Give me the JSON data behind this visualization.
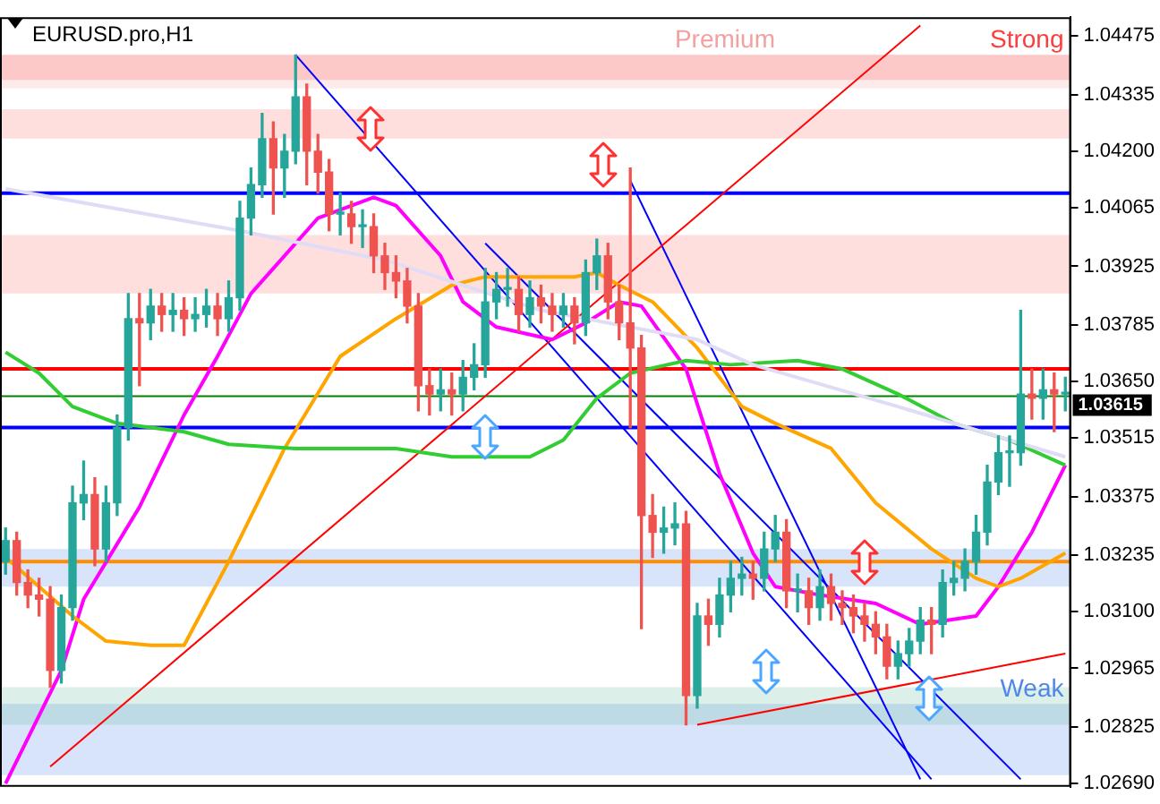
{
  "chart_data": {
    "type": "candlestick",
    "title": "EURUSD.pro,H1",
    "categories": [
      null,
      null,
      null,
      null,
      null,
      null,
      null,
      null,
      null,
      null,
      null,
      null,
      null,
      null,
      null,
      null,
      null,
      null,
      null,
      null,
      null,
      null,
      null,
      null,
      null,
      null,
      null,
      null,
      null,
      null,
      null,
      null,
      null,
      null,
      null,
      null,
      null,
      null,
      null,
      null,
      null,
      null,
      null,
      null,
      null,
      null,
      null,
      null,
      null,
      null,
      null,
      null,
      null,
      null,
      null,
      null,
      null,
      null,
      null,
      null,
      null,
      null,
      null,
      null,
      null,
      null,
      null,
      null,
      null,
      null,
      null,
      null,
      null,
      null,
      null,
      null,
      null,
      null,
      null,
      null,
      null,
      null,
      null,
      null,
      null,
      null,
      null,
      null,
      null,
      null,
      null,
      null,
      null,
      null,
      null,
      null
    ],
    "ohlc": [
      [
        1.0322,
        1.033,
        1.0319,
        1.0327
      ],
      [
        1.0327,
        1.0329,
        1.0314,
        1.0317
      ],
      [
        1.0317,
        1.032,
        1.0311,
        1.0314
      ],
      [
        1.0314,
        1.0318,
        1.0309,
        1.0313
      ],
      [
        1.0313,
        1.0316,
        1.0292,
        1.0296
      ],
      [
        1.0296,
        1.0314,
        1.0293,
        1.0311
      ],
      [
        1.0311,
        1.034,
        1.0308,
        1.0336
      ],
      [
        1.0336,
        1.0346,
        1.0332,
        1.0338
      ],
      [
        1.0338,
        1.0342,
        1.0321,
        1.0325
      ],
      [
        1.0325,
        1.034,
        1.0322,
        1.0336
      ],
      [
        1.0336,
        1.0357,
        1.0333,
        1.0354
      ],
      [
        1.0354,
        1.0386,
        1.0351,
        1.038
      ],
      [
        1.038,
        1.0386,
        1.0364,
        1.0379
      ],
      [
        1.0379,
        1.0387,
        1.0375,
        1.0383
      ],
      [
        1.0383,
        1.0386,
        1.0377,
        1.0381
      ],
      [
        1.0381,
        1.0386,
        1.0377,
        1.0382
      ],
      [
        1.0382,
        1.0385,
        1.0376,
        1.038
      ],
      [
        1.038,
        1.0385,
        1.0377,
        1.0381
      ],
      [
        1.0381,
        1.0387,
        1.0378,
        1.0383
      ],
      [
        1.0383,
        1.0386,
        1.0376,
        1.038
      ],
      [
        1.038,
        1.0389,
        1.0377,
        1.0385
      ],
      [
        1.0385,
        1.0408,
        1.0382,
        1.0404
      ],
      [
        1.0404,
        1.0416,
        1.04,
        1.0412
      ],
      [
        1.0412,
        1.0429,
        1.0409,
        1.0423
      ],
      [
        1.0423,
        1.0427,
        1.0405,
        1.0416
      ],
      [
        1.0416,
        1.0424,
        1.0409,
        1.042
      ],
      [
        1.042,
        1.0443,
        1.0417,
        1.0433
      ],
      [
        1.0433,
        1.0436,
        1.0412,
        1.042
      ],
      [
        1.042,
        1.0424,
        1.041,
        1.0415
      ],
      [
        1.0415,
        1.0418,
        1.0401,
        1.0405
      ],
      [
        1.0405,
        1.041,
        1.04,
        1.0405
      ],
      [
        1.0405,
        1.0408,
        1.0398,
        1.0402
      ],
      [
        1.0402,
        1.0406,
        1.0397,
        1.0402
      ],
      [
        1.0402,
        1.0405,
        1.0391,
        1.0395
      ],
      [
        1.0395,
        1.0398,
        1.0387,
        1.0391
      ],
      [
        1.0391,
        1.0395,
        1.0385,
        1.0389
      ],
      [
        1.0389,
        1.0392,
        1.0379,
        1.0383
      ],
      [
        1.0383,
        1.0386,
        1.0358,
        1.0364
      ],
      [
        1.0364,
        1.0368,
        1.0357,
        1.0362
      ],
      [
        1.0362,
        1.0368,
        1.0358,
        1.0363
      ],
      [
        1.0363,
        1.0367,
        1.0357,
        1.0362
      ],
      [
        1.0362,
        1.037,
        1.0358,
        1.0366
      ],
      [
        1.0366,
        1.0374,
        1.0363,
        1.0369
      ],
      [
        1.0369,
        1.0392,
        1.0366,
        1.0384
      ],
      [
        1.0384,
        1.0391,
        1.038,
        1.0387
      ],
      [
        1.0387,
        1.0392,
        1.0383,
        1.0387
      ],
      [
        1.0387,
        1.039,
        1.0377,
        1.0381
      ],
      [
        1.0381,
        1.0389,
        1.0378,
        1.0385
      ],
      [
        1.0385,
        1.0388,
        1.0379,
        1.0383
      ],
      [
        1.0383,
        1.0386,
        1.0377,
        1.0381
      ],
      [
        1.0381,
        1.0386,
        1.0378,
        1.0383
      ],
      [
        1.0383,
        1.0385,
        1.0374,
        1.0379
      ],
      [
        1.0379,
        1.0394,
        1.0376,
        1.0391
      ],
      [
        1.0391,
        1.0399,
        1.0387,
        1.0395
      ],
      [
        1.0395,
        1.0398,
        1.038,
        1.0384
      ],
      [
        1.0384,
        1.0388,
        1.0375,
        1.0379
      ],
      [
        1.0379,
        1.0416,
        1.0354,
        1.0373
      ],
      [
        1.0373,
        1.0376,
        1.0306,
        1.0333
      ],
      [
        1.0333,
        1.0338,
        1.0323,
        1.0329
      ],
      [
        1.0329,
        1.0335,
        1.0324,
        1.033
      ],
      [
        1.033,
        1.0336,
        1.0326,
        1.0331
      ],
      [
        1.0331,
        1.0334,
        1.0283,
        1.029
      ],
      [
        1.029,
        1.0312,
        1.0287,
        1.0309
      ],
      [
        1.0309,
        1.0313,
        1.0302,
        1.0307
      ],
      [
        1.0307,
        1.0318,
        1.0304,
        1.0314
      ],
      [
        1.0314,
        1.0322,
        1.031,
        1.0318
      ],
      [
        1.0318,
        1.0323,
        1.0314,
        1.0319
      ],
      [
        1.0319,
        1.0322,
        1.0313,
        1.0318
      ],
      [
        1.0318,
        1.0329,
        1.0315,
        1.0325
      ],
      [
        1.0325,
        1.0333,
        1.0322,
        1.0329
      ],
      [
        1.0329,
        1.0332,
        1.0311,
        1.0315
      ],
      [
        1.0315,
        1.0319,
        1.031,
        1.0315
      ],
      [
        1.0315,
        1.0318,
        1.0307,
        1.0311
      ],
      [
        1.0311,
        1.032,
        1.0308,
        1.0316
      ],
      [
        1.0316,
        1.0319,
        1.0308,
        1.0312
      ],
      [
        1.0312,
        1.0315,
        1.0307,
        1.0311
      ],
      [
        1.0311,
        1.0314,
        1.0305,
        1.0309
      ],
      [
        1.0309,
        1.0312,
        1.0303,
        1.0307
      ],
      [
        1.0307,
        1.031,
        1.03,
        1.0304
      ],
      [
        1.0304,
        1.0307,
        1.0294,
        1.0297
      ],
      [
        1.0297,
        1.0303,
        1.0294,
        1.03
      ],
      [
        1.03,
        1.0306,
        1.0297,
        1.0303
      ],
      [
        1.0303,
        1.0311,
        1.03,
        1.0308
      ],
      [
        1.0308,
        1.0311,
        1.03,
        1.0307
      ],
      [
        1.0307,
        1.032,
        1.0304,
        1.0317
      ],
      [
        1.0317,
        1.0322,
        1.0314,
        1.0318
      ],
      [
        1.0318,
        1.0325,
        1.0315,
        1.0322
      ],
      [
        1.0322,
        1.0333,
        1.0319,
        1.0329
      ],
      [
        1.0329,
        1.0345,
        1.0326,
        1.0341
      ],
      [
        1.0341,
        1.0352,
        1.0338,
        1.0348
      ],
      [
        1.0348,
        1.0352,
        1.034,
        1.0348
      ],
      [
        1.0348,
        1.0382,
        1.0345,
        1.0362
      ],
      [
        1.0362,
        1.0368,
        1.0356,
        1.0361
      ],
      [
        1.0361,
        1.0368,
        1.0356,
        1.0363
      ],
      [
        1.0363,
        1.0367,
        1.0353,
        1.0362
      ],
      [
        1.0362,
        1.0366,
        1.0358,
        1.0362
      ]
    ],
    "colors": [
      "#26a69a",
      "#ef5350",
      "#ef5350",
      "#ef5350",
      "#ef5350",
      "#26a69a",
      "#26a69a",
      "#26a69a",
      "#ef5350",
      "#26a69a",
      "#26a69a",
      "#26a69a",
      "#ef5350",
      "#26a69a",
      "#ef5350",
      "#26a69a",
      "#ef5350",
      "#26a69a",
      "#26a69a",
      "#ef5350",
      "#26a69a",
      "#26a69a",
      "#26a69a",
      "#26a69a",
      "#ef5350",
      "#26a69a",
      "#26a69a",
      "#ef5350",
      "#ef5350",
      "#ef5350",
      "#26a69a",
      "#ef5350",
      "#26a69a",
      "#ef5350",
      "#ef5350",
      "#ef5350",
      "#ef5350",
      "#ef5350",
      "#ef5350",
      "#26a69a",
      "#ef5350",
      "#26a69a",
      "#26a69a",
      "#26a69a",
      "#26a69a",
      "#26a69a",
      "#ef5350",
      "#26a69a",
      "#ef5350",
      "#ef5350",
      "#26a69a",
      "#ef5350",
      "#26a69a",
      "#26a69a",
      "#ef5350",
      "#ef5350",
      "#ef5350",
      "#ef5350",
      "#ef5350",
      "#26a69a",
      "#26a69a",
      "#ef5350",
      "#26a69a",
      "#ef5350",
      "#26a69a",
      "#26a69a",
      "#26a69a",
      "#ef5350",
      "#26a69a",
      "#26a69a",
      "#ef5350",
      "#26a69a",
      "#ef5350",
      "#26a69a",
      "#ef5350",
      "#ef5350",
      "#ef5350",
      "#ef5350",
      "#ef5350",
      "#ef5350",
      "#26a69a",
      "#26a69a",
      "#26a69a",
      "#ef5350",
      "#26a69a",
      "#26a69a",
      "#26a69a",
      "#26a69a",
      "#26a69a",
      "#26a69a",
      "#26a69a",
      "#26a69a",
      "#ef5350",
      "#26a69a",
      "#ef5350",
      "#26a69a"
    ],
    "series": [
      {
        "type": "line",
        "color": "#e0dcf5",
        "values": [
          1.0411,
          null,
          null,
          null,
          null,
          null,
          null,
          null,
          null,
          null,
          null,
          null,
          null,
          null,
          null,
          null,
          null,
          null,
          null,
          null,
          null,
          1.0401,
          null,
          null,
          null,
          null,
          null,
          null,
          null,
          null,
          null,
          null,
          null,
          null,
          1.0394,
          null,
          null,
          null,
          null,
          null,
          null,
          null,
          null,
          null,
          null,
          null,
          null,
          null,
          1.0382,
          null,
          null,
          null,
          null,
          null,
          1.0379,
          null,
          null,
          null,
          null,
          null,
          null,
          null,
          1.0375,
          null,
          null,
          null,
          null,
          1.0369,
          null,
          null,
          null,
          null,
          null,
          null,
          null,
          null,
          null,
          null,
          null,
          null,
          1.0359,
          null,
          null,
          null,
          null,
          null,
          null,
          null,
          null,
          null,
          null,
          null,
          null,
          null,
          null,
          1.0347
        ]
      },
      {
        "type": "line",
        "color": "#32cd32",
        "values": [
          1.0372,
          null,
          null,
          1.0367,
          null,
          null,
          1.0359,
          null,
          null,
          null,
          1.0355,
          null,
          null,
          null,
          null,
          null,
          1.0353,
          null,
          null,
          null,
          1.035,
          null,
          null,
          null,
          null,
          null,
          1.0349,
          null,
          null,
          null,
          null,
          null,
          null,
          null,
          null,
          1.0349,
          null,
          null,
          null,
          null,
          1.0347,
          null,
          null,
          null,
          null,
          null,
          null,
          1.0347,
          null,
          null,
          1.0351,
          null,
          null,
          1.0361,
          null,
          null,
          1.0367,
          null,
          null,
          null,
          null,
          1.037,
          null,
          null,
          null,
          1.0369,
          null,
          null,
          null,
          null,
          null,
          1.037,
          null,
          null,
          null,
          1.0368,
          null,
          null,
          null,
          null,
          1.0362,
          null,
          null,
          null,
          null,
          1.0355,
          null,
          null,
          null,
          null,
          1.0351,
          null,
          null,
          null,
          null,
          1.0345
        ]
      },
      {
        "type": "line",
        "color": "#ffa500",
        "values": [
          1.0323,
          null,
          null,
          1.0316,
          null,
          null,
          1.0309,
          null,
          null,
          1.0303,
          null,
          null,
          null,
          1.0302,
          null,
          null,
          1.0302,
          null,
          null,
          null,
          1.0322,
          null,
          null,
          null,
          null,
          1.0349,
          null,
          null,
          null,
          null,
          1.0371,
          null,
          null,
          null,
          null,
          1.038,
          null,
          null,
          null,
          null,
          1.0388,
          null,
          null,
          1.039,
          null,
          null,
          null,
          null,
          null,
          null,
          null,
          1.039,
          null,
          1.0391,
          null,
          1.0388,
          null,
          null,
          1.0384,
          null,
          null,
          null,
          1.0373,
          null,
          null,
          null,
          1.0359,
          null,
          null,
          1.0355,
          null,
          null,
          null,
          null,
          1.0349,
          null,
          null,
          null,
          1.0336,
          null,
          null,
          null,
          null,
          1.0325,
          null,
          null,
          null,
          1.0318,
          null,
          1.0316,
          null,
          1.0318,
          null,
          null,
          null,
          1.0324
        ]
      },
      {
        "type": "line",
        "color": "#ff00ff",
        "values": [
          1.0269,
          null,
          null,
          null,
          null,
          1.0296,
          null,
          1.0313,
          null,
          null,
          null,
          null,
          1.0335,
          null,
          null,
          null,
          1.0357,
          null,
          null,
          1.0371,
          null,
          null,
          1.0386,
          null,
          null,
          null,
          null,
          null,
          1.0404,
          null,
          null,
          null,
          null,
          1.0409,
          null,
          1.0407,
          null,
          null,
          null,
          1.0395,
          null,
          1.0384,
          null,
          null,
          1.0378,
          null,
          null,
          null,
          null,
          1.0375,
          null,
          null,
          1.0379,
          null,
          null,
          1.0384,
          null,
          1.0383,
          null,
          null,
          null,
          1.0368,
          null,
          null,
          1.0343,
          null,
          null,
          1.0324,
          null,
          1.0316,
          null,
          null,
          null,
          1.0314,
          null,
          null,
          null,
          null,
          1.0312,
          null,
          null,
          null,
          1.0307,
          null,
          null,
          null,
          null,
          1.0309,
          null,
          1.0316,
          null,
          null,
          1.0329,
          null,
          null,
          1.0345
        ]
      },
      {
        "type": "line",
        "color": "#ff0000",
        "values": [
          null,
          null,
          null,
          null,
          1.0273,
          null,
          null,
          null,
          null,
          null,
          null,
          null,
          null,
          null,
          null,
          null,
          null,
          null,
          null,
          null,
          null,
          null,
          null,
          null,
          null,
          null,
          null,
          null,
          null,
          null,
          null,
          null,
          null,
          null,
          null,
          null,
          null,
          null,
          null,
          null,
          null,
          null,
          null,
          null,
          null,
          null,
          null,
          null,
          null,
          null,
          null,
          null,
          null,
          null,
          null,
          null,
          null,
          null,
          null,
          null,
          null,
          null,
          null,
          null,
          null,
          null,
          null,
          null,
          null,
          null,
          null,
          null,
          null,
          null,
          null,
          null,
          null,
          null,
          null,
          null,
          null,
          null,
          1.045,
          null,
          null,
          null,
          null,
          null,
          null,
          null,
          null,
          null,
          null,
          null,
          null,
          null
        ]
      },
      {
        "type": "line",
        "color": "#0000ff",
        "values": [
          null,
          null,
          null,
          null,
          null,
          null,
          null,
          null,
          null,
          null,
          null,
          null,
          null,
          null,
          null,
          null,
          null,
          null,
          null,
          null,
          null,
          null,
          null,
          null,
          null,
          null,
          1.0443,
          null,
          null,
          null,
          null,
          null,
          null,
          null,
          null,
          null,
          null,
          null,
          null,
          null,
          null,
          null,
          null,
          null,
          null,
          null,
          null,
          null,
          null,
          null,
          null,
          null,
          null,
          null,
          null,
          null,
          null,
          null,
          null,
          null,
          null,
          null,
          null,
          null,
          null,
          null,
          null,
          null,
          null,
          null,
          null,
          null,
          null,
          null,
          null,
          null,
          null,
          null,
          null,
          null,
          null,
          null,
          null,
          1.027,
          null,
          null,
          null,
          null,
          null,
          null,
          null,
          null,
          null,
          null,
          null,
          null
        ]
      },
      {
        "type": "line",
        "color": "#0000ff",
        "values": [
          null,
          null,
          null,
          null,
          null,
          null,
          null,
          null,
          null,
          null,
          null,
          null,
          null,
          null,
          null,
          null,
          null,
          null,
          null,
          null,
          null,
          null,
          null,
          null,
          null,
          null,
          null,
          null,
          null,
          null,
          null,
          null,
          null,
          null,
          null,
          null,
          null,
          null,
          null,
          null,
          null,
          null,
          null,
          null,
          null,
          null,
          null,
          null,
          null,
          null,
          null,
          null,
          null,
          null,
          null,
          null,
          1.0413,
          null,
          null,
          null,
          null,
          null,
          null,
          null,
          null,
          null,
          null,
          null,
          null,
          null,
          null,
          null,
          null,
          null,
          null,
          null,
          null,
          null,
          null,
          null,
          null,
          null,
          1.027,
          null,
          null,
          null,
          null,
          null,
          null,
          null,
          null,
          null,
          null,
          null,
          null,
          null
        ]
      },
      {
        "type": "line",
        "color": "#0000ff",
        "values": [
          null,
          null,
          null,
          null,
          null,
          null,
          null,
          null,
          null,
          null,
          null,
          null,
          null,
          null,
          null,
          null,
          null,
          null,
          null,
          null,
          null,
          null,
          null,
          null,
          null,
          null,
          null,
          null,
          null,
          null,
          null,
          null,
          null,
          null,
          null,
          null,
          null,
          null,
          null,
          null,
          null,
          null,
          null,
          1.0398,
          null,
          null,
          null,
          null,
          null,
          null,
          null,
          null,
          null,
          null,
          null,
          null,
          null,
          null,
          null,
          null,
          null,
          null,
          null,
          null,
          null,
          null,
          null,
          null,
          null,
          null,
          null,
          null,
          null,
          null,
          null,
          null,
          null,
          null,
          null,
          null,
          null,
          null,
          null,
          null,
          null,
          null,
          null,
          null,
          null,
          null,
          null,
          1.027,
          null,
          null,
          null,
          null
        ]
      },
      {
        "type": "line",
        "color": "#ff0000",
        "values": [
          null,
          null,
          null,
          null,
          null,
          null,
          null,
          null,
          null,
          null,
          null,
          null,
          null,
          null,
          null,
          null,
          null,
          null,
          null,
          null,
          null,
          null,
          null,
          null,
          null,
          null,
          null,
          null,
          null,
          null,
          null,
          null,
          null,
          null,
          null,
          null,
          null,
          null,
          null,
          null,
          null,
          null,
          null,
          null,
          null,
          null,
          null,
          null,
          null,
          null,
          null,
          null,
          null,
          null,
          null,
          null,
          null,
          null,
          null,
          null,
          null,
          null,
          1.0283,
          null,
          null,
          null,
          null,
          null,
          null,
          null,
          null,
          null,
          null,
          null,
          null,
          null,
          null,
          null,
          null,
          null,
          null,
          null,
          null,
          null,
          null,
          null,
          null,
          null,
          null,
          null,
          null,
          null,
          null,
          null,
          null,
          1.03
        ]
      }
    ],
    "ylim": [
      1.02682,
      1.0452
    ],
    "yticks": [
      {
        "value": 1.0269,
        "label": "1.02690"
      },
      {
        "value": 1.02825,
        "label": "1.02825"
      },
      {
        "value": 1.02965,
        "label": "1.02965"
      },
      {
        "value": 1.031,
        "label": "1.03100"
      },
      {
        "value": 1.03235,
        "label": "1.03235"
      },
      {
        "value": 1.03375,
        "label": "1.03375"
      },
      {
        "value": 1.03515,
        "label": "1.03515"
      },
      {
        "value": 1.0365,
        "label": "1.03650"
      },
      {
        "value": 1.03785,
        "label": "1.03785"
      },
      {
        "value": 1.03925,
        "label": "1.03925"
      },
      {
        "value": 1.04065,
        "label": "1.04065"
      },
      {
        "value": 1.042,
        "label": "1.04200"
      },
      {
        "value": 1.04335,
        "label": "1.04335"
      },
      {
        "value": 1.04475,
        "label": "1.04475"
      }
    ],
    "tick_labels": "y",
    "bands": [
      {
        "axis": "y",
        "from": 1.0437,
        "to": 1.0443,
        "color": "#ff3b3b",
        "label": "Strong"
      },
      {
        "axis": "y",
        "from": 1.0423,
        "to": 1.043,
        "color": "#ff6b6b"
      },
      {
        "axis": "y",
        "from": 1.0386,
        "to": 1.04,
        "color": "#ff6b6b"
      },
      {
        "axis": "y",
        "from": 1.0271,
        "to": 1.0288,
        "color": "#4f86e8",
        "label": "Weak"
      },
      {
        "axis": "y",
        "from": 1.0435,
        "to": 1.0443,
        "color": "#f4a0a0",
        "label": "Premium"
      },
      {
        "axis": "y",
        "from": 1.0283,
        "to": 1.0292,
        "color": "#5fb89a"
      },
      {
        "axis": "y",
        "from": 1.0316,
        "to": 1.0325,
        "color": "#4f86e8"
      }
    ],
    "ref_lines": [
      {
        "axis": "y",
        "value": 1.041,
        "color": "#0000ff"
      },
      {
        "axis": "y",
        "value": 1.0368,
        "color": "#ff0000"
      },
      {
        "axis": "y",
        "value": 1.03615,
        "color": "#008000",
        "label": "1.03615"
      },
      {
        "axis": "y",
        "value": 1.0354,
        "color": "#0000ff"
      },
      {
        "axis": "y",
        "value": 1.0322,
        "color": "#ff8c00"
      }
    ]
  }
}
